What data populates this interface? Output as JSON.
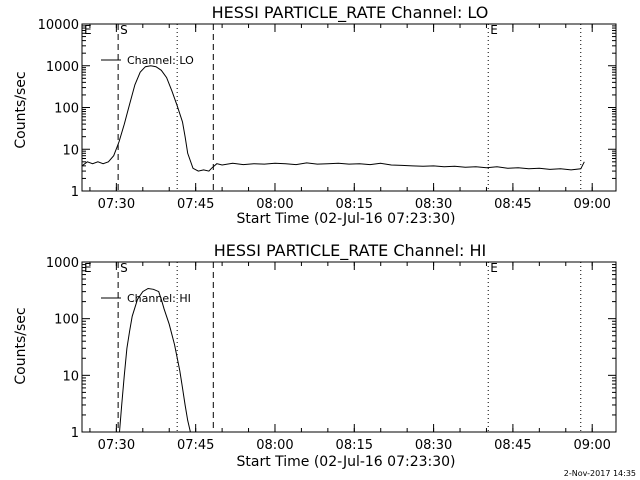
{
  "chart_data": [
    {
      "type": "line",
      "title": "HESSI PARTICLE_RATE Channel: LO",
      "xlabel": "Start Time (02-Jul-16 07:23:30)",
      "ylabel": "Counts/sec",
      "yscale": "log",
      "ylim": [
        1,
        10000
      ],
      "xlim": [
        "07:23:30",
        "09:04:30"
      ],
      "x_ticks": [
        "07:30",
        "07:45",
        "08:00",
        "08:15",
        "08:30",
        "08:45",
        "09:00"
      ],
      "y_ticks": [
        "1",
        "10",
        "100",
        "1000",
        "10000"
      ],
      "grid": false,
      "legend": {
        "position": "top-left",
        "entries": [
          "Channel: LO"
        ]
      },
      "markers": [
        {
          "label": "E",
          "time": "07:23:30",
          "style": "none"
        },
        {
          "label": "S",
          "time": "07:30:20",
          "style": "dashed"
        },
        {
          "label": "",
          "time": "07:41:30",
          "style": "dotted"
        },
        {
          "label": "",
          "time": "07:48:20",
          "style": "dashed"
        },
        {
          "label": "E",
          "time": "08:40:20",
          "style": "dotted"
        },
        {
          "label": "",
          "time": "08:57:50",
          "style": "dotted"
        }
      ],
      "series": [
        {
          "name": "Channel: LO",
          "x": [
            "07:23:30",
            "07:24:30",
            "07:25:30",
            "07:26:30",
            "07:27:30",
            "07:28:30",
            "07:29:30",
            "07:30:30",
            "07:31:30",
            "07:32:30",
            "07:33:30",
            "07:34:30",
            "07:35:30",
            "07:36:30",
            "07:37:30",
            "07:38:30",
            "07:39:30",
            "07:40:30",
            "07:41:30",
            "07:42:30",
            "07:43:00",
            "07:43:30",
            "07:44:30",
            "07:45:30",
            "07:46:30",
            "07:47:30",
            "07:48:00",
            "07:49:00",
            "07:50:00",
            "07:52:00",
            "07:54:00",
            "07:56:00",
            "07:58:00",
            "08:00:00",
            "08:02:00",
            "08:04:00",
            "08:06:00",
            "08:08:00",
            "08:10:00",
            "08:12:00",
            "08:14:00",
            "08:16:00",
            "08:18:00",
            "08:20:00",
            "08:22:00",
            "08:24:00",
            "08:26:00",
            "08:28:00",
            "08:30:00",
            "08:32:00",
            "08:34:00",
            "08:36:00",
            "08:38:00",
            "08:40:00",
            "08:42:00",
            "08:44:00",
            "08:46:00",
            "08:48:00",
            "08:50:00",
            "08:52:00",
            "08:54:00",
            "08:56:00",
            "08:57:50",
            "08:58:30"
          ],
          "values": [
            4,
            5,
            4.5,
            5,
            4.5,
            5,
            7,
            15,
            40,
            120,
            350,
            700,
            950,
            1000,
            950,
            780,
            520,
            250,
            110,
            45,
            20,
            8,
            3.5,
            3,
            3.2,
            3,
            3.5,
            4.5,
            4.2,
            4.6,
            4.3,
            4.5,
            4.4,
            4.6,
            4.5,
            4.3,
            4.7,
            4.4,
            4.5,
            4.6,
            4.4,
            4.5,
            4.3,
            4.6,
            4.2,
            4.1,
            4.0,
            3.9,
            4.0,
            3.8,
            3.9,
            3.7,
            3.8,
            3.6,
            3.8,
            3.5,
            3.6,
            3.4,
            3.5,
            3.3,
            3.4,
            3.2,
            3.4,
            5
          ]
        }
      ]
    },
    {
      "type": "line",
      "title": "HESSI PARTICLE_RATE Channel: HI",
      "xlabel": "Start Time (02-Jul-16 07:23:30)",
      "ylabel": "Counts/sec",
      "yscale": "log",
      "ylim": [
        1,
        1000
      ],
      "xlim": [
        "07:23:30",
        "09:04:30"
      ],
      "x_ticks": [
        "07:30",
        "07:45",
        "08:00",
        "08:15",
        "08:30",
        "08:45",
        "09:00"
      ],
      "y_ticks": [
        "1",
        "10",
        "100",
        "1000"
      ],
      "grid": false,
      "legend": {
        "position": "top-left",
        "entries": [
          "Channel: HI"
        ]
      },
      "markers": [
        {
          "label": "E",
          "time": "07:23:30",
          "style": "none"
        },
        {
          "label": "S",
          "time": "07:30:20",
          "style": "dashed"
        },
        {
          "label": "",
          "time": "07:41:30",
          "style": "dotted"
        },
        {
          "label": "",
          "time": "07:48:20",
          "style": "dashed"
        },
        {
          "label": "E",
          "time": "08:40:20",
          "style": "dotted"
        },
        {
          "label": "",
          "time": "08:57:50",
          "style": "dotted"
        }
      ],
      "series": [
        {
          "name": "Channel: HI",
          "x": [
            "07:30:35",
            "07:31:00",
            "07:31:30",
            "07:32:00",
            "07:32:30",
            "07:33:00",
            "07:34:00",
            "07:35:00",
            "07:36:00",
            "07:37:00",
            "07:38:00",
            "07:38:30",
            "07:39:00",
            "07:40:00",
            "07:41:00",
            "07:42:00",
            "07:42:30",
            "07:43:00",
            "07:43:30",
            "07:44:00"
          ],
          "values": [
            1,
            3,
            10,
            30,
            60,
            110,
            220,
            300,
            340,
            330,
            300,
            220,
            150,
            80,
            35,
            12,
            6,
            3,
            1.6,
            1
          ]
        }
      ]
    }
  ],
  "footer": {
    "timestamp": "2-Nov-2017 14:35"
  }
}
